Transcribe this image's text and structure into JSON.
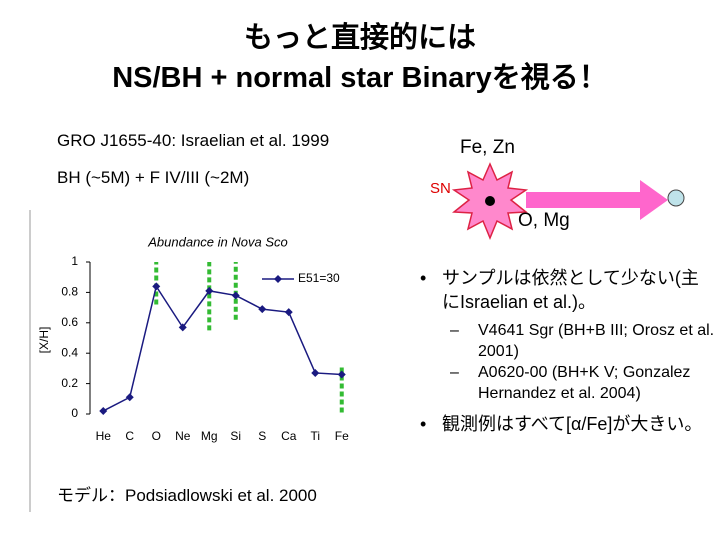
{
  "title": {
    "line1": "もっと直接的には",
    "line2": "NS/BH + normal star Binaryを視る！"
  },
  "left": {
    "source": "GRO J1655-40: Israelian et al. 1999",
    "system": "BH (~5M) + F IV/III (~2M)",
    "model": "モデル：Podsiadlowski et al. 2000"
  },
  "diagram": {
    "fe_zn": "Fe, Zn",
    "sn": "SN",
    "o_mg": "O, Mg"
  },
  "bullets": [
    {
      "text": "サンプルは依然として少ない(主にIsraelian et al.)。",
      "sub": [
        "V4641 Sgr (BH+B III; Orosz et al. 2001)",
        "A0620-00 (BH+K V; Gonzalez Hernandez et al. 2004)"
      ]
    },
    {
      "text": "観測例はすべて[α/Fe]が大きい。",
      "sub": []
    }
  ],
  "chart_data": {
    "type": "line",
    "title": "Abundance in Nova Sco",
    "y_label": "[X/H]",
    "categories": [
      "He",
      "C",
      "O",
      "Ne",
      "Mg",
      "Si",
      "S",
      "Ca",
      "Ti",
      "Fe"
    ],
    "series": [
      {
        "name": "E51=30",
        "color": "#1a1a80",
        "values": [
          0.02,
          0.11,
          0.84,
          0.57,
          0.81,
          0.78,
          0.69,
          0.67,
          0.27,
          0.26
        ]
      }
    ],
    "observed": {
      "index": [
        2,
        4,
        5,
        9
      ],
      "low": [
        0.72,
        0.55,
        0.62,
        0.01
      ],
      "high": [
        1.0,
        1.0,
        1.0,
        0.32
      ],
      "color": "#33bb33"
    },
    "ylim": [
      0,
      1
    ],
    "yticks": [
      0,
      0.2,
      0.4,
      0.6,
      0.8,
      1
    ]
  }
}
